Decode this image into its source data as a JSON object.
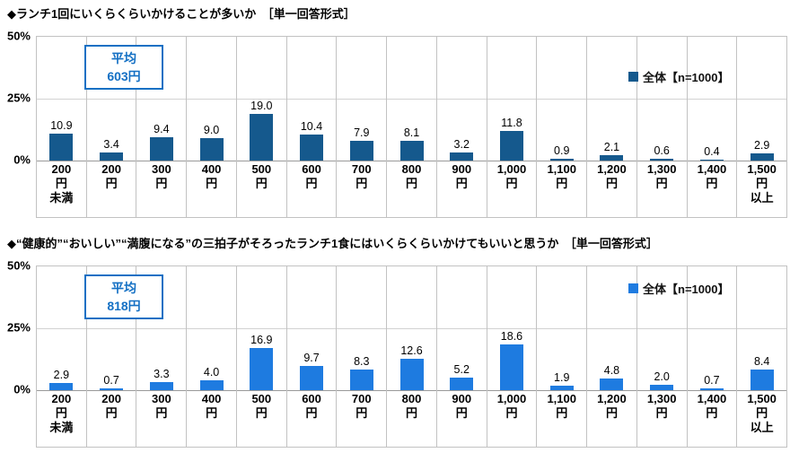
{
  "chart_data": [
    {
      "type": "bar",
      "title": "ランチ1回にいくらくらいかけることが多いか（単一回答形式）",
      "categories": [
        "200円未満",
        "200円",
        "300円",
        "400円",
        "500円",
        "600円",
        "700円",
        "800円",
        "900円",
        "1,000円",
        "1,100円",
        "1,200円",
        "1,300円",
        "1,400円",
        "1,500円以上"
      ],
      "values": [
        10.9,
        3.4,
        9.4,
        9.0,
        19.0,
        10.4,
        7.9,
        8.1,
        3.2,
        11.8,
        0.9,
        2.1,
        0.6,
        0.4,
        2.9
      ],
      "ylim": [
        0,
        50
      ],
      "yticks": [
        0,
        25,
        50
      ],
      "legend": [
        "全体【n=1000】"
      ],
      "legend_position": "right",
      "grid": true,
      "average_label": "平均 603円"
    },
    {
      "type": "bar",
      "title": "“健康的”“おいしい”“満腹になる”の三拍子がそろったランチ1食にはいくらくらいかけてもいいと思うか（単一回答形式）",
      "categories": [
        "200円未満",
        "200円",
        "300円",
        "400円",
        "500円",
        "600円",
        "700円",
        "800円",
        "900円",
        "1,000円",
        "1,100円",
        "1,200円",
        "1,300円",
        "1,400円",
        "1,500円以上"
      ],
      "values": [
        2.9,
        0.7,
        3.3,
        4.0,
        16.9,
        9.7,
        8.3,
        12.6,
        5.2,
        18.6,
        1.9,
        4.8,
        2.0,
        0.7,
        8.4
      ],
      "ylim": [
        0,
        50
      ],
      "yticks": [
        0,
        25,
        50
      ],
      "legend": [
        "全体【n=1000】"
      ],
      "legend_position": "right",
      "grid": true,
      "average_label": "平均 818円"
    }
  ],
  "charts": [
    {
      "title": "◆ランチ1回にいくらくらいかけることが多いか　［単一回答形式］",
      "y_ticks": [
        "50%",
        "25%",
        "0%"
      ],
      "average": {
        "label": "平均",
        "value": "603円"
      },
      "legend": {
        "label": "全体【n=1000】",
        "swatch_color": "#15598d"
      },
      "bar_color": "#15598d",
      "accent_color": "#1470c4",
      "tick_lines": [
        [
          "200",
          "円",
          "未満"
        ],
        [
          "200",
          "円"
        ],
        [
          "300",
          "円"
        ],
        [
          "400",
          "円"
        ],
        [
          "500",
          "円"
        ],
        [
          "600",
          "円"
        ],
        [
          "700",
          "円"
        ],
        [
          "800",
          "円"
        ],
        [
          "900",
          "円"
        ],
        [
          "1,000",
          "円"
        ],
        [
          "1,100",
          "円"
        ],
        [
          "1,200",
          "円"
        ],
        [
          "1,300",
          "円"
        ],
        [
          "1,400",
          "円"
        ],
        [
          "1,500",
          "円",
          "以上"
        ]
      ]
    },
    {
      "title": "◆“健康的”“おいしい”“満腹になる”の三拍子がそろったランチ1食にはいくらくらいかけてもいいと思うか　［単一回答形式］",
      "y_ticks": [
        "50%",
        "25%",
        "0%"
      ],
      "average": {
        "label": "平均",
        "value": "818円"
      },
      "legend": {
        "label": "全体【n=1000】",
        "swatch_color": "#1e7be0"
      },
      "bar_color": "#1e7be0",
      "accent_color": "#1470c4",
      "tick_lines": [
        [
          "200",
          "円",
          "未満"
        ],
        [
          "200",
          "円"
        ],
        [
          "300",
          "円"
        ],
        [
          "400",
          "円"
        ],
        [
          "500",
          "円"
        ],
        [
          "600",
          "円"
        ],
        [
          "700",
          "円"
        ],
        [
          "800",
          "円"
        ],
        [
          "900",
          "円"
        ],
        [
          "1,000",
          "円"
        ],
        [
          "1,100",
          "円"
        ],
        [
          "1,200",
          "円"
        ],
        [
          "1,300",
          "円"
        ],
        [
          "1,400",
          "円"
        ],
        [
          "1,500",
          "円",
          "以上"
        ]
      ]
    }
  ]
}
